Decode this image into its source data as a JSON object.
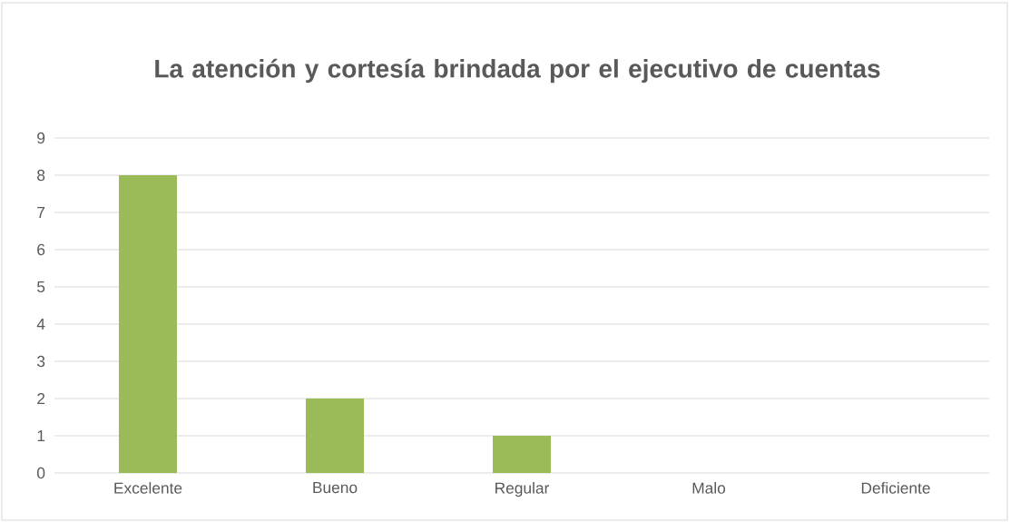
{
  "chart_data": {
    "type": "bar",
    "title": "La atención y cortesía brindada por el ejecutivo de cuentas",
    "categories": [
      "Excelente",
      "Bueno",
      "Regular",
      "Malo",
      "Deficiente"
    ],
    "values": [
      8,
      2,
      1,
      0,
      0
    ],
    "color": "#9bbb59",
    "ylim": [
      0,
      9
    ],
    "yticks": [
      0,
      1,
      2,
      3,
      4,
      5,
      6,
      7,
      8,
      9
    ],
    "grid": "y"
  }
}
